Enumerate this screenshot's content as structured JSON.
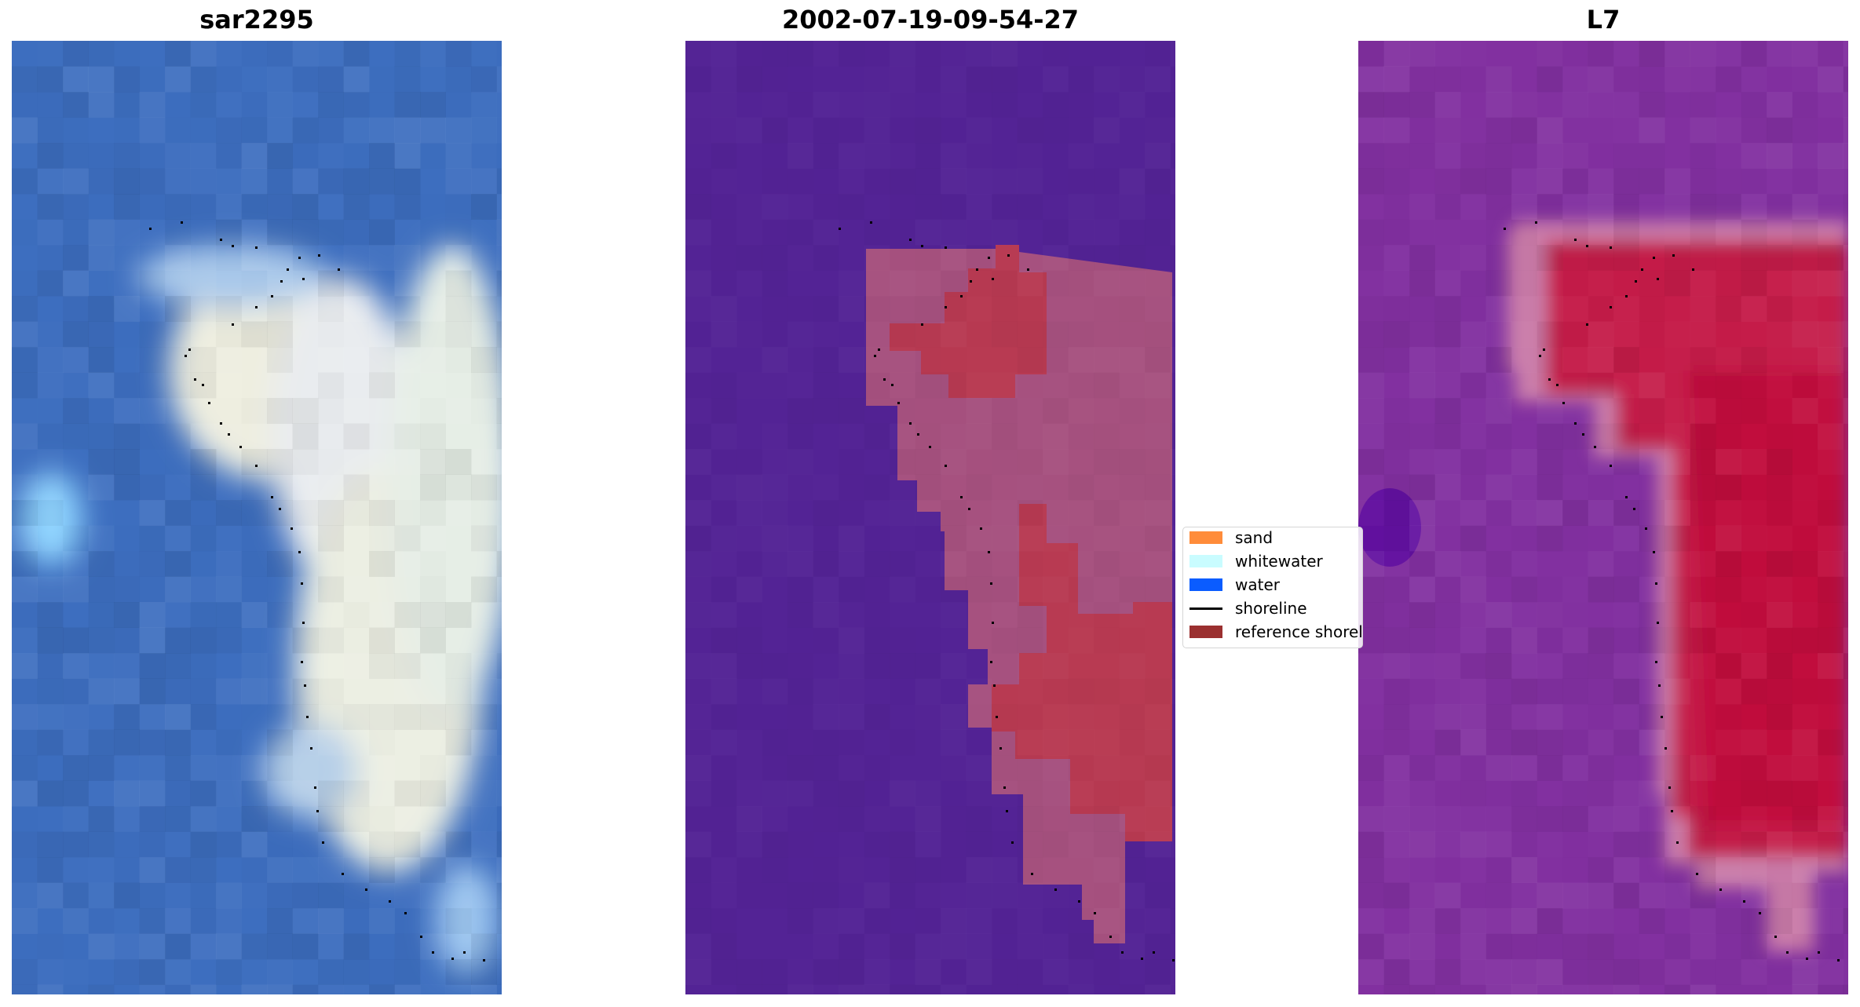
{
  "panels": [
    {
      "title": "sar2295",
      "image_name": "rgb-image"
    },
    {
      "title": "2002-07-19-09-54-27",
      "image_name": "classified-image"
    },
    {
      "title": "L7",
      "image_name": "mndwi-image"
    }
  ],
  "legend": {
    "items": [
      {
        "label": "sand",
        "color": "#ff8c3a",
        "kind": "patch"
      },
      {
        "label": "whitewater",
        "color": "#c9fcff",
        "kind": "patch"
      },
      {
        "label": "water",
        "color": "#0a5cff",
        "kind": "patch"
      },
      {
        "label": "shoreline",
        "color": "#000000",
        "kind": "line"
      },
      {
        "label": "reference shoreline",
        "color": "#9b3030",
        "kind": "patch"
      }
    ]
  },
  "colors": {
    "classified_background": "#532395",
    "classified_sand": "#b83a52",
    "classified_mid": "#a9527f",
    "rgb_water": "#3d6ebf",
    "rgb_white": "#f3f3e6",
    "mndwi_low": "#8230a0",
    "mndwi_high": "#c0123f"
  }
}
